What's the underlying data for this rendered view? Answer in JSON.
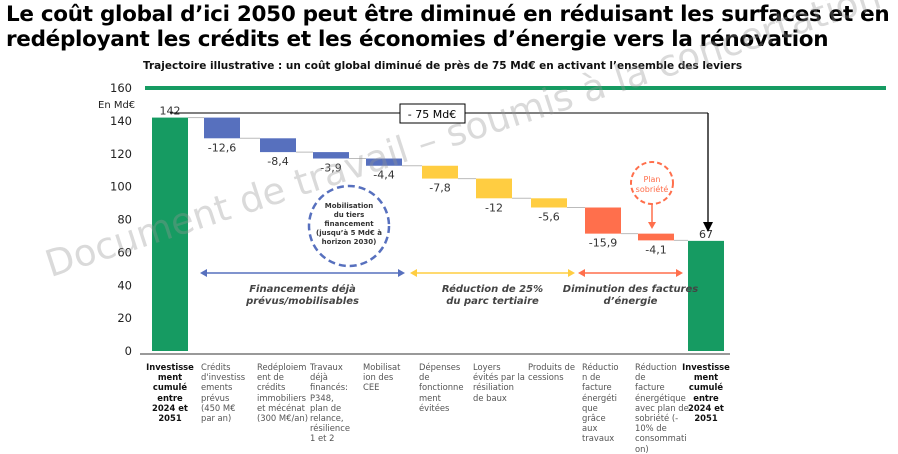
{
  "title_line1": "Le coût global d’ici 2050 peut être diminué en réduisant les surfaces et en",
  "title_line2": "redéployant les crédits et les économies d’énergie vers la rénovation",
  "watermark": "Document de travail – soumis à la concertation",
  "chart_data": {
    "type": "waterfall",
    "title": "Trajectoire illustrative : un coût global diminué de près de 75 Md€ en activant l’ensemble des leviers",
    "ylabel": "En Md€",
    "ylim": [
      0,
      160
    ],
    "yticks": [
      0,
      20,
      40,
      60,
      80,
      100,
      120,
      140,
      160
    ],
    "categories": [
      "Investissement cumulé entre 2024 et 2051",
      "Crédits d’investissements prévus (450 M€ par an)",
      "Redéploiement de crédits immobiliers et mécénat (300 M€/an)",
      "Travaux déjà financés: P348, plan de relance, résilience 1 et 2",
      "Mobilisation des CEE",
      "Dépenses de fonctionnement évitées",
      "Loyers évités par la résiliation de baux",
      "Produits de cessions",
      "Réduction de facture énergétique grâce aux travaux",
      "Réduction de facture énergétique avec plan de sobriété (-10% de consommation)",
      "Investissement cumulé entre 2024 et 2051"
    ],
    "category_labels": [
      "Investisse\nment\ncumulé\nentre\n2024 et\n2051",
      "Crédits\nd'investiss\nements\nprévus\n(450 M€\npar an)",
      "Redéploiem\nent de\ncrédits\nimmobiliers\net mécénat\n(300 M€/an)",
      "Travaux\ndéjà\nfinancés:\nP348,\nplan de\nrelance,\nrésilience\n1 et 2",
      "Mobilisat\nion des\nCEE",
      "Dépenses\nde\nfonctionne\nment\névitées",
      "Loyers\névités par la\nrésiliation\nde baux",
      "Produits de\ncessions",
      "Réductio\nn de\nfacture\nénergéti\nque\ngrâce\naux\ntravaux",
      "Réduction de\nfacture\nénergétique\navec plan de\nsobriété (-\n10%  de\nconsommati\non)",
      "Investisse\nment\ncumulé\nentre\n2024 et\n2051"
    ],
    "values": [
      142,
      -12.6,
      -8.4,
      -3.9,
      -4.4,
      -7.8,
      -12,
      -5.6,
      -15.9,
      -4.1,
      67
    ],
    "value_labels": [
      "142",
      "-12,6",
      "-8,4",
      "-3,9",
      "-4,4",
      "-7,8",
      "-12",
      "-5,6",
      "-15,9",
      "-4,1",
      "67"
    ],
    "kinds": [
      "total",
      "delta",
      "delta",
      "delta",
      "delta",
      "delta",
      "delta",
      "delta",
      "delta",
      "delta",
      "total"
    ],
    "colors": [
      "#169B62",
      "#5770BE",
      "#5770BE",
      "#5770BE",
      "#5770BE",
      "#FFCD41",
      "#FFCD41",
      "#FFCD41",
      "#FF6F4C",
      "#FF6F4C",
      "#169B62"
    ],
    "reference_line": {
      "value": 160,
      "color": "#169B62"
    },
    "total_reduction_label": "- 75 Md€",
    "groups": [
      {
        "label_line1": "Financements déjà",
        "label_line2": "prévus/mobilisables",
        "color": "#5770BE"
      },
      {
        "label_line1": "Réduction de 25%",
        "label_line2": "du parc tertiaire",
        "color": "#FFCD41"
      },
      {
        "label_line1": "Diminution des factures",
        "label_line2": "d’énergie",
        "color": "#FF6F4C"
      }
    ],
    "annotations": {
      "tiers": [
        "Mobilisation",
        "du tiers",
        "financement",
        "(jusqu’à 5 Md€ à",
        "horizon 2030)"
      ],
      "sobriete": [
        "Plan",
        "sobriété"
      ]
    }
  }
}
